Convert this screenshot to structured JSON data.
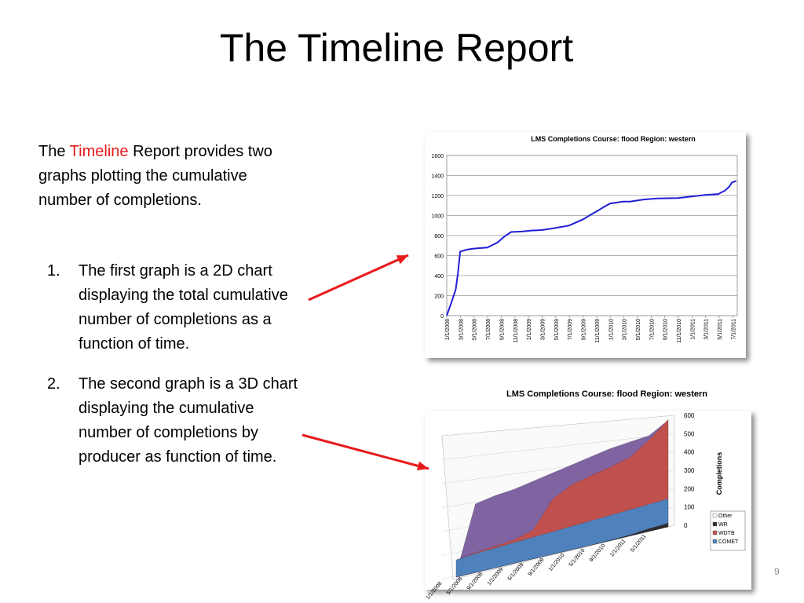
{
  "slide": {
    "title": "The Timeline Report",
    "intro": {
      "before": "The ",
      "highlight": "Timeline",
      "after": " Report provides two graphs plotting the cumulative number of completions."
    },
    "list": [
      {
        "num": "1.",
        "text": "The first graph is a 2D chart displaying the total cumulative number of completions as a function of time."
      },
      {
        "num": "2.",
        "text": "The second graph is a 3D chart displaying the cumulative number of completions by producer as function of time."
      }
    ],
    "page_number": "9",
    "colors": {
      "highlight": "#e8191b",
      "arrow": "#e8191b"
    }
  },
  "chart_data": [
    {
      "type": "line",
      "title": "LMS Completions    Course: flood    Region: western",
      "xlabel": "",
      "ylabel": "",
      "ylim": [
        0,
        1600
      ],
      "yticks": [
        0,
        200,
        400,
        600,
        800,
        1000,
        1200,
        1400,
        1600
      ],
      "grid": true,
      "color": "#1f1fd6",
      "x_tick_labels": [
        "1/1/2008",
        "3/1/2008",
        "5/1/2008",
        "7/1/2008",
        "9/1/2008",
        "11/1/2008",
        "1/1/2009",
        "3/1/2009",
        "5/1/2009",
        "7/1/2009",
        "9/1/2009",
        "11/1/2009",
        "1/1/2010",
        "3/1/2010",
        "5/1/2010",
        "7/1/2010",
        "9/1/2010",
        "11/1/2010",
        "1/1/2011",
        "3/1/2011",
        "5/1/2011",
        "7/1/2011"
      ],
      "series": [
        {
          "x": [
            "2008-01-01",
            "2008-01-20",
            "2008-02-10",
            "2008-02-20",
            "2008-03-01",
            "2008-04-01",
            "2008-05-01",
            "2008-07-01",
            "2008-08-15",
            "2008-09-15",
            "2008-10-15",
            "2008-12-01",
            "2009-01-15",
            "2009-03-01",
            "2009-04-01",
            "2009-05-01",
            "2009-07-01",
            "2009-08-01",
            "2009-09-01",
            "2009-10-01",
            "2009-12-01",
            "2010-01-01",
            "2010-03-01",
            "2010-04-01",
            "2010-06-01",
            "2010-08-01",
            "2010-11-01",
            "2011-01-01",
            "2011-03-01",
            "2011-05-01",
            "2011-06-01",
            "2011-06-20",
            "2011-07-01",
            "2011-07-20"
          ],
          "y": [
            0,
            120,
            260,
            420,
            640,
            660,
            670,
            680,
            730,
            790,
            835,
            840,
            850,
            855,
            865,
            875,
            900,
            930,
            960,
            1000,
            1080,
            1120,
            1140,
            1140,
            1160,
            1170,
            1175,
            1190,
            1205,
            1215,
            1250,
            1290,
            1330,
            1345
          ]
        }
      ]
    },
    {
      "type": "area",
      "title": "LMS Completions    Course: flood    Region: western",
      "ylabel": "Completions",
      "ylim": [
        0,
        600
      ],
      "yticks": [
        0,
        100,
        200,
        300,
        400,
        500,
        600
      ],
      "legend": "right",
      "x_tick_labels": [
        "1/1/2008",
        "5/1/2008",
        "9/1/2008",
        "1/1/2009",
        "5/1/2009",
        "9/1/2009",
        "1/1/2010",
        "5/1/2010",
        "9/1/2010",
        "1/1/2011",
        "5/1/2011"
      ],
      "categories": [
        "2008-01",
        "2008-05",
        "2008-09",
        "2009-01",
        "2009-05",
        "2009-09",
        "2010-01",
        "2010-05",
        "2010-09",
        "2011-01",
        "2011-05",
        "2011-07"
      ],
      "series": [
        {
          "name": "Other",
          "color": "#ffffff",
          "values": [
            0,
            0,
            0,
            0,
            0,
            0,
            0,
            0,
            0,
            0,
            0,
            0
          ]
        },
        {
          "name": "WR",
          "color": "#2d2d2d",
          "values": [
            0,
            0,
            0,
            0,
            0,
            0,
            0,
            0,
            2,
            5,
            15,
            20
          ]
        },
        {
          "name": "WDTB",
          "color": "#c0504d",
          "values": [
            0,
            5,
            10,
            15,
            40,
            180,
            230,
            250,
            265,
            285,
            340,
            420
          ]
        },
        {
          "name": "COMET",
          "color": "#4f81bd",
          "values": [
            95,
            105,
            110,
            115,
            120,
            125,
            130,
            135,
            140,
            145,
            150,
            155
          ]
        }
      ]
    }
  ]
}
